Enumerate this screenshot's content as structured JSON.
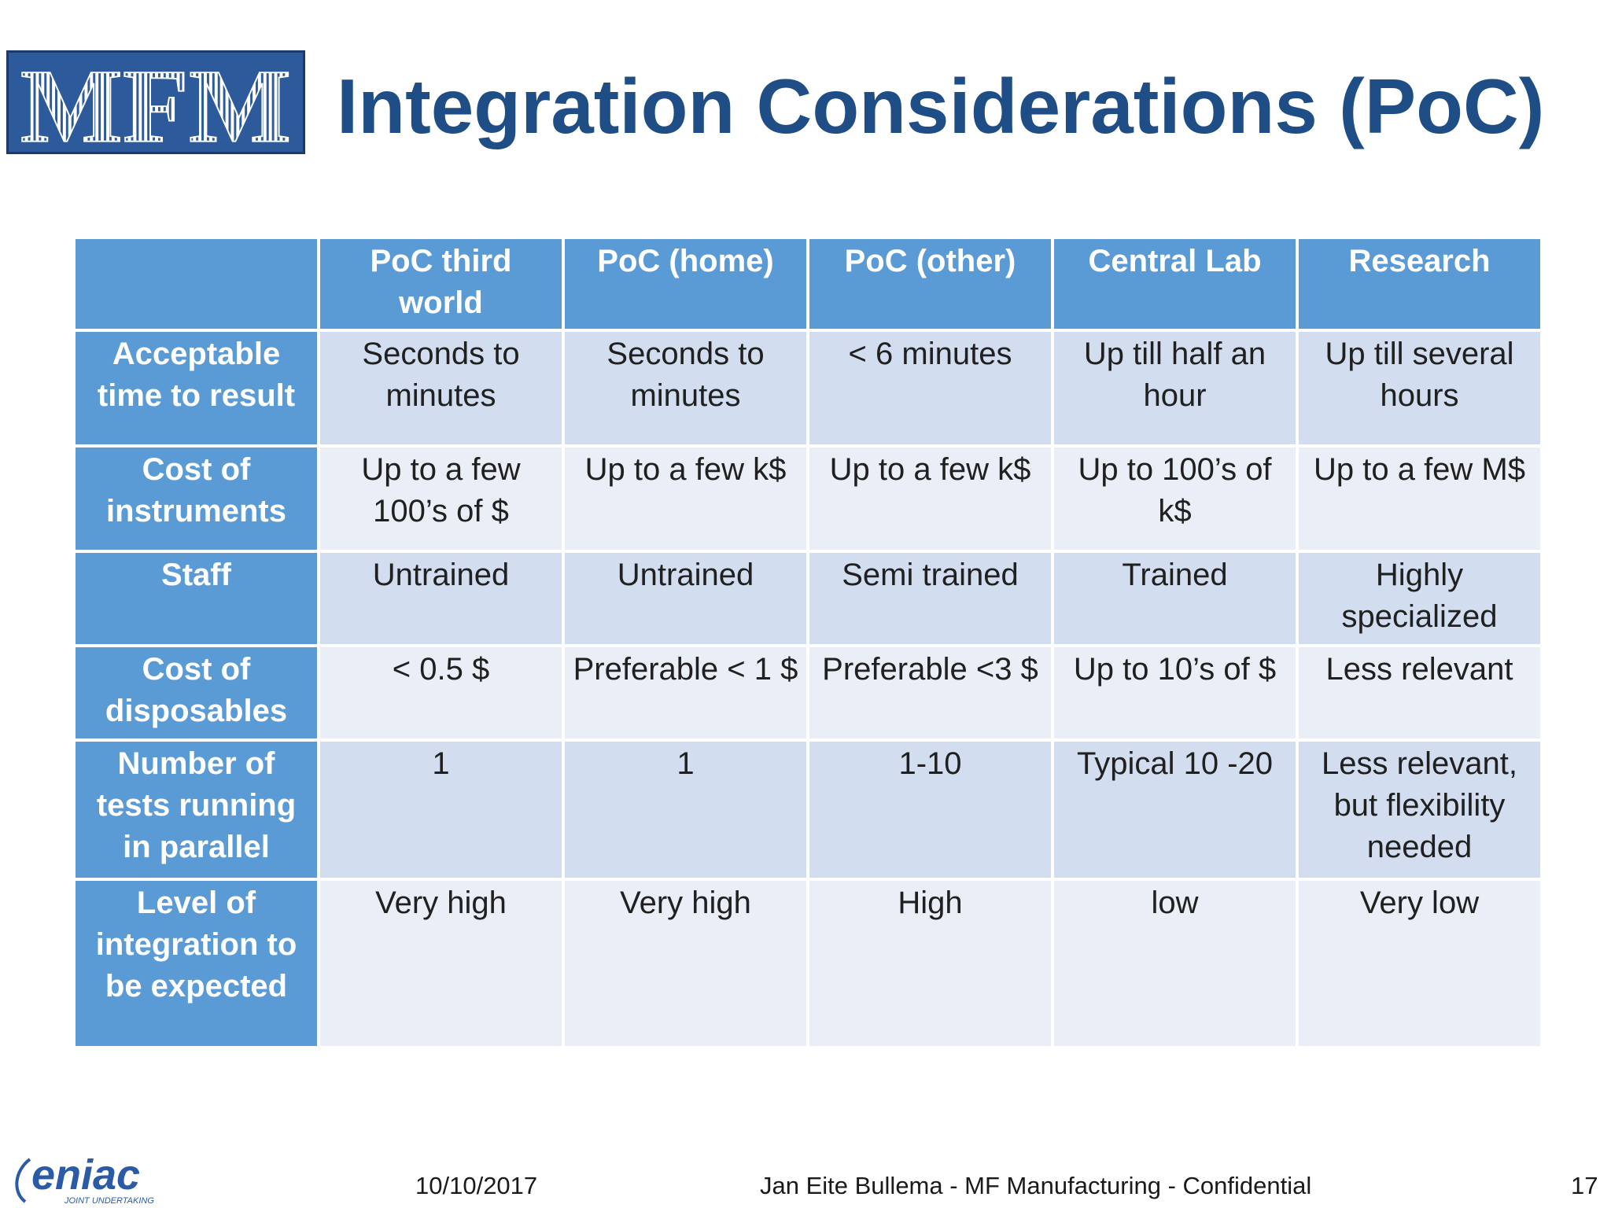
{
  "header": {
    "logo_text": "MFM",
    "title": "Integration Considerations (PoC)"
  },
  "table": {
    "columns": [
      "",
      "PoC third world",
      "PoC (home)",
      "PoC (other)",
      "Central Lab",
      "Research"
    ],
    "rows": [
      {
        "label": "Acceptable time to result",
        "cells": [
          "Seconds to minutes",
          "Seconds to minutes",
          "< 6 minutes",
          "Up till half an hour",
          "Up till several hours"
        ]
      },
      {
        "label": "Cost of instruments",
        "cells": [
          "Up to a few 100’s of $",
          "Up to a few k$",
          "Up to a few k$",
          "Up to 100’s of k$",
          "Up to a few M$"
        ]
      },
      {
        "label": "Staff",
        "cells": [
          "Untrained",
          "Untrained",
          "Semi trained",
          "Trained",
          "Highly specialized"
        ]
      },
      {
        "label": "Cost of disposables",
        "cells": [
          "< 0.5 $",
          "Preferable < 1 $",
          "Preferable <3 $",
          "Up to 10’s of $",
          "Less relevant"
        ]
      },
      {
        "label": "Number of tests running in parallel",
        "cells": [
          "1",
          "1",
          "1-10",
          "Typical 10 -20",
          "Less relevant, but flexibility needed"
        ]
      },
      {
        "label": "Level of integration to be expected",
        "cells": [
          "Very high",
          "Very high",
          "High",
          "low",
          "Very low"
        ]
      }
    ]
  },
  "footer": {
    "logo_text": "eniac",
    "logo_subtext": "JOINT UNDERTAKING",
    "date": "10/10/2017",
    "confidential": "Jan Eite Bullema - MF Manufacturing -  Confidential",
    "page": "17"
  },
  "colors": {
    "title": "#1f4e86",
    "header_fill": "#5b9bd5",
    "row_dark": "#d2deef",
    "row_light": "#eaeff7"
  }
}
